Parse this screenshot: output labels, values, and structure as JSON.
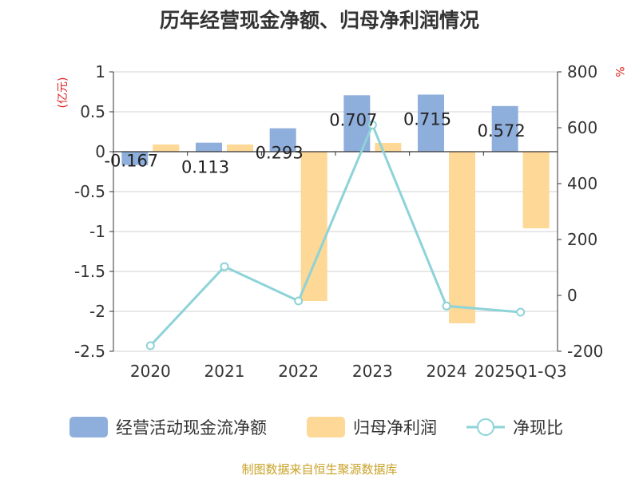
{
  "title": "历年经营现金净额、归母净利润情况",
  "source": "制图数据来自恒生聚源数据库",
  "left_axis_unit": "(亿元)",
  "right_axis_unit": "%",
  "colors": {
    "cash": "#8eaedb",
    "profit": "#fdd896",
    "ratio": "#8dd3d8",
    "unit": "#e02020",
    "source": "#c9a227"
  },
  "chart_data": {
    "type": "bar",
    "title": "历年经营现金净额、归母净利润情况",
    "categories": [
      "2020",
      "2021",
      "2022",
      "2023",
      "2024",
      "2025Q1-Q3"
    ],
    "y_left": {
      "label": "(亿元)",
      "min": -2.5,
      "max": 1,
      "ticks": [
        1,
        0.5,
        0,
        -0.5,
        -1,
        -1.5,
        -2,
        -2.5
      ],
      "tick_labels": [
        "1",
        "0.5",
        "0",
        "-0.5",
        "-1",
        "-1.5",
        "-2",
        "-2.5"
      ]
    },
    "y_right": {
      "label": "%",
      "min": -200,
      "max": 800,
      "ticks": [
        800,
        600,
        400,
        200,
        0,
        -200
      ],
      "tick_labels": [
        "800",
        "600",
        "400",
        "200",
        "0",
        "-200"
      ]
    },
    "series": [
      {
        "name": "经营活动现金流净额",
        "type": "bar",
        "axis": "left",
        "values": [
          -0.167,
          0.113,
          0.293,
          0.707,
          0.715,
          0.572
        ],
        "labels": [
          "-0.167",
          "0.113",
          "0.293",
          "0.707",
          "0.715",
          "0.572"
        ]
      },
      {
        "name": "归母净利润",
        "type": "bar",
        "axis": "left",
        "values": [
          0.09,
          0.09,
          -1.87,
          0.11,
          -2.15,
          -0.96
        ]
      },
      {
        "name": "净现比",
        "type": "line",
        "axis": "right",
        "values": [
          -180,
          103,
          -20,
          610,
          -38,
          -60
        ]
      }
    ],
    "legend": [
      "经营活动现金流净额",
      "归母净利润",
      "净现比"
    ],
    "legend_position": "bottom"
  }
}
